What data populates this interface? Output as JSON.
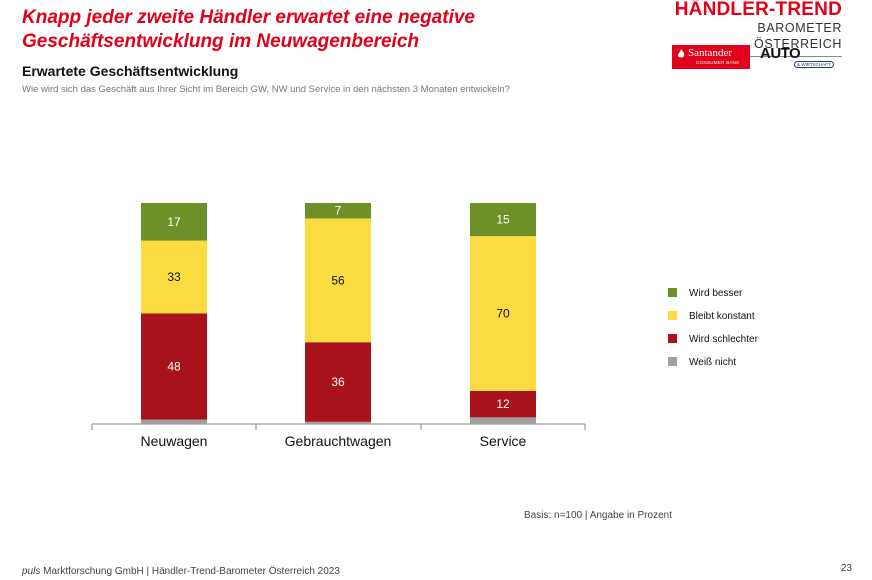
{
  "header": {
    "headline": "Knapp jeder zweite Händler erwartet eine negative Geschäftsentwicklung im Neuwagenbereich",
    "subtitle": "Erwartete Geschäftsentwicklung",
    "question": "Wie wird sich das Geschäft aus Ihrer Sicht im Bereich GW, NW und Service in den nächsten 3 Monaten entwickeln?"
  },
  "brand": {
    "title": "HÄNDLER-TREND",
    "subtitle": "BAROMETER ÖSTERREICH",
    "santander": "Santander",
    "santander_sub": "CONSUMER BANK",
    "auto": "AUTO",
    "auto_sub": "& WIRTSCHAFT"
  },
  "chart_data": {
    "type": "bar",
    "stacked": true,
    "categories": [
      "Neuwagen",
      "Gebrauchtwagen",
      "Service"
    ],
    "series": [
      {
        "name": "Wird besser",
        "color": "#6f8f28",
        "values": [
          17,
          7,
          15
        ]
      },
      {
        "name": "Bleibt konstant",
        "color": "#fadc41",
        "values": [
          33,
          56,
          70
        ]
      },
      {
        "name": "Wird schlechter",
        "color": "#a8131b",
        "values": [
          48,
          36,
          12
        ]
      },
      {
        "name": "Weiß nicht",
        "color": "#a0a0a0",
        "values": [
          2,
          1,
          3
        ]
      }
    ],
    "ylim": [
      0,
      100
    ],
    "legend": "right",
    "grid": false
  },
  "basis": "Basis: n=100 | Angabe in Prozent",
  "footer": {
    "company": "puls",
    "text": " Marktforschung GmbH | Händler-Trend-Barometer Österreich 2023"
  },
  "page_number": "23"
}
